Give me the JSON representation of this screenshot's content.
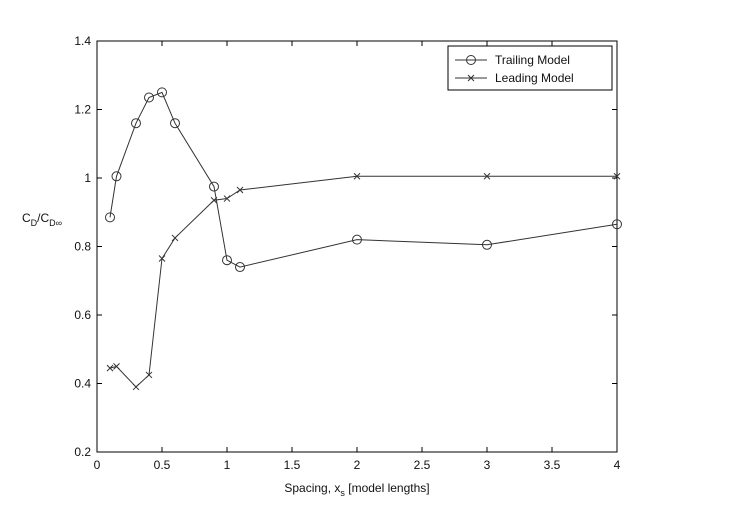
{
  "chart_data": {
    "type": "line",
    "xlabel_main": "Spacing, x",
    "xlabel_sub": "s",
    "xlabel_tail": " [model lengths]",
    "ylabel_c1": "C",
    "ylabel_s1": "D",
    "ylabel_mid": "/C",
    "ylabel_s2": "D∞",
    "xlim": [
      0,
      4
    ],
    "ylim": [
      0.2,
      1.4
    ],
    "xticks": [
      0,
      0.5,
      1,
      1.5,
      2,
      2.5,
      3,
      3.5,
      4
    ],
    "xtick_labels": [
      "0",
      "0.5",
      "1",
      "1.5",
      "2",
      "2.5",
      "3",
      "3.5",
      "4"
    ],
    "yticks": [
      0.2,
      0.4,
      0.6,
      0.8,
      1,
      1.2,
      1.4
    ],
    "ytick_labels": [
      "0.2",
      "0.4",
      "0.6",
      "0.8",
      "1",
      "1.2",
      "1.4"
    ],
    "grid": false,
    "legend_position": "top-right",
    "series": [
      {
        "name": "Trailing Model",
        "marker": "circle",
        "color": "#333333",
        "x": [
          0.1,
          0.15,
          0.3,
          0.4,
          0.5,
          0.6,
          0.9,
          1.0,
          1.1,
          2.0,
          3.0,
          4.0
        ],
        "y": [
          0.885,
          1.005,
          1.16,
          1.235,
          1.25,
          1.16,
          0.975,
          0.76,
          0.74,
          0.82,
          0.805,
          0.865
        ]
      },
      {
        "name": "Leading Model",
        "marker": "x",
        "color": "#333333",
        "x": [
          0.1,
          0.15,
          0.3,
          0.4,
          0.5,
          0.6,
          0.9,
          1.0,
          1.1,
          2.0,
          3.0,
          4.0
        ],
        "y": [
          0.445,
          0.45,
          0.39,
          0.425,
          0.765,
          0.825,
          0.935,
          0.94,
          0.965,
          1.005,
          1.005,
          1.005
        ]
      }
    ]
  }
}
